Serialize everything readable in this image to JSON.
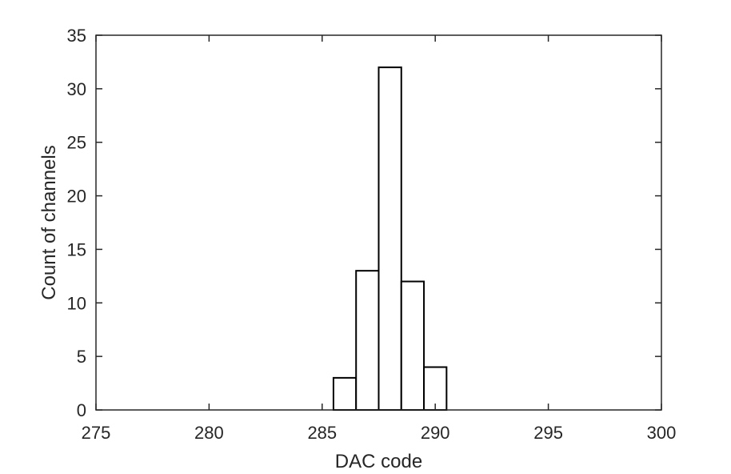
{
  "chart_data": {
    "type": "bar",
    "title": "",
    "xlabel": "DAC code",
    "ylabel": "Count of channels",
    "xlim": [
      275,
      300
    ],
    "ylim": [
      0,
      35
    ],
    "xticks": [
      275,
      280,
      285,
      290,
      295,
      300
    ],
    "yticks": [
      0,
      5,
      10,
      15,
      20,
      25,
      30,
      35
    ],
    "bin_width": 1,
    "bins": [
      {
        "x": 280,
        "value": 0
      },
      {
        "x": 281,
        "value": 0
      },
      {
        "x": 282,
        "value": 0
      },
      {
        "x": 283,
        "value": 0
      },
      {
        "x": 284,
        "value": 0
      },
      {
        "x": 285,
        "value": 0
      },
      {
        "x": 286,
        "value": 3
      },
      {
        "x": 287,
        "value": 13
      },
      {
        "x": 288,
        "value": 32
      },
      {
        "x": 289,
        "value": 12
      },
      {
        "x": 290,
        "value": 4
      },
      {
        "x": 291,
        "value": 0
      },
      {
        "x": 292,
        "value": 0
      },
      {
        "x": 293,
        "value": 0
      },
      {
        "x": 294,
        "value": 0
      },
      {
        "x": 295,
        "value": 0
      },
      {
        "x": 296,
        "value": 0
      },
      {
        "x": 297,
        "value": 0
      },
      {
        "x": 298,
        "value": 0
      },
      {
        "x": 299,
        "value": 0
      }
    ],
    "grid": false,
    "box": true,
    "colors": {
      "bar_fill": "#ffffff",
      "bar_edge": "#000000",
      "axis": "#262626"
    }
  }
}
